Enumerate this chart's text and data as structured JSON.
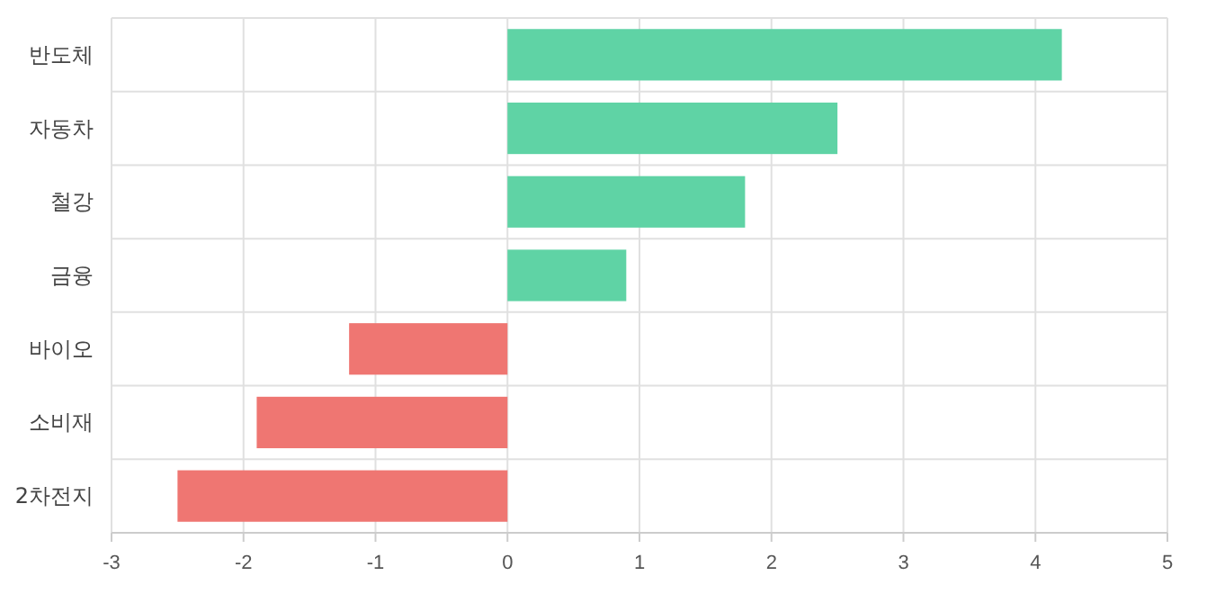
{
  "chart_data": {
    "type": "bar",
    "orientation": "horizontal",
    "categories": [
      "반도체",
      "자동차",
      "철강",
      "금융",
      "바이오",
      "소비재",
      "2차전지"
    ],
    "values": [
      4.2,
      2.5,
      1.8,
      0.9,
      -1.2,
      -1.9,
      -2.5
    ],
    "colors": [
      "#5fd3a5",
      "#5fd3a5",
      "#5fd3a5",
      "#5fd3a5",
      "#ef7672",
      "#ef7672",
      "#ef7672"
    ],
    "xlim": [
      -3,
      5
    ],
    "xticks": [
      -3,
      -2,
      -1,
      0,
      1,
      2,
      3,
      4,
      5
    ],
    "grid": true
  }
}
